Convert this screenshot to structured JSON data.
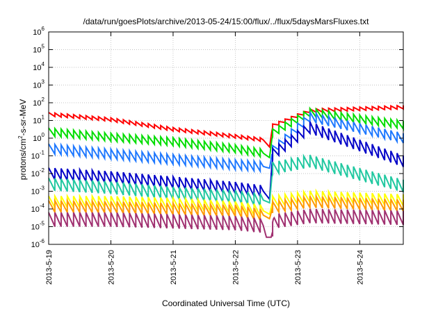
{
  "chart_data": {
    "type": "line",
    "title": "/data/run/goesPlots/archive/2013-05-24/15:00/flux/../flux/5daysMarsFluxes.txt",
    "xlabel": "Coordinated Universal Time (UTC)",
    "ylabel_main": "protons/cm",
    "ylabel_sup": "2",
    "ylabel_rest": "-s-sr-MeV",
    "y_scale": "log",
    "ylim_exp": [
      -6,
      6
    ],
    "y_tick_base": "10",
    "y_tick_exponents": [
      "-6",
      "-5",
      "-4",
      "-3",
      "-2",
      "-1",
      "0",
      "1",
      "2",
      "3",
      "4",
      "5",
      "6"
    ],
    "xlim": [
      0,
      5.7
    ],
    "x_ticks": [
      {
        "x": 0,
        "label": "2013-5-19"
      },
      {
        "x": 1,
        "label": "2013-5-20"
      },
      {
        "x": 2,
        "label": "2013-5-21"
      },
      {
        "x": 3,
        "label": "2013-5-22"
      },
      {
        "x": 4,
        "label": "2013-5-23"
      },
      {
        "x": 5,
        "label": "2013-5-24"
      }
    ],
    "x_units": "days since 2013-5-19 00:00 UTC",
    "grid": true,
    "sawtooth_period_days": 0.1,
    "sawtooth_amplitude_decades": {
      "red": 0.2,
      "green": 0.45,
      "blue": 0.55,
      "navy": 0.65,
      "teal": 0.7,
      "yellow": 0.65,
      "orange": 0.65,
      "purple": 0.8
    },
    "series": [
      {
        "key": "red",
        "color": "#ff0000",
        "envelope": [
          [
            0,
            1.35
          ],
          [
            1,
            1.05
          ],
          [
            2,
            0.5
          ],
          [
            3,
            0.1
          ],
          [
            3.45,
            -0.1
          ],
          [
            3.55,
            -0.5
          ],
          [
            3.6,
            0.7
          ],
          [
            4.2,
            1.55
          ],
          [
            5.7,
            1.75
          ]
        ]
      },
      {
        "key": "green",
        "color": "#00dd00",
        "envelope": [
          [
            0,
            0.35
          ],
          [
            1,
            0.05
          ],
          [
            2,
            -0.2
          ],
          [
            3,
            -0.6
          ],
          [
            3.45,
            -0.85
          ],
          [
            3.55,
            -1.1
          ],
          [
            3.6,
            0.3
          ],
          [
            4.2,
            1.45
          ],
          [
            5.7,
            0.75
          ]
        ]
      },
      {
        "key": "blue",
        "color": "#1e78ff",
        "envelope": [
          [
            0,
            -0.6
          ],
          [
            1,
            -0.9
          ],
          [
            2,
            -1.2
          ],
          [
            3,
            -1.5
          ],
          [
            3.45,
            -1.6
          ],
          [
            3.55,
            -1.7
          ],
          [
            3.6,
            -0.7
          ],
          [
            4.2,
            1.2
          ],
          [
            5.7,
            0.0
          ]
        ]
      },
      {
        "key": "navy",
        "color": "#0000c8",
        "envelope": [
          [
            0,
            -2.0
          ],
          [
            1,
            -2.2
          ],
          [
            2,
            -2.5
          ],
          [
            3,
            -2.8
          ],
          [
            3.45,
            -3.0
          ],
          [
            3.55,
            -3.45
          ],
          [
            3.6,
            -0.9
          ],
          [
            4.2,
            0.6
          ],
          [
            5.7,
            -1.3
          ]
        ]
      },
      {
        "key": "teal",
        "color": "#20c8a0",
        "envelope": [
          [
            0,
            -2.6
          ],
          [
            1,
            -2.8
          ],
          [
            2,
            -3.1
          ],
          [
            3,
            -3.3
          ],
          [
            3.45,
            -3.5
          ],
          [
            3.55,
            -3.65
          ],
          [
            3.6,
            -1.7
          ],
          [
            4.2,
            -1.3
          ],
          [
            5.7,
            -2.7
          ]
        ]
      },
      {
        "key": "yellow",
        "color": "#ffff00",
        "envelope": [
          [
            0,
            -3.6
          ],
          [
            1,
            -3.6
          ],
          [
            2,
            -3.7
          ],
          [
            3,
            -3.9
          ],
          [
            3.45,
            -4.1
          ],
          [
            3.55,
            -4.3
          ],
          [
            3.6,
            -3.6
          ],
          [
            4.2,
            -3.3
          ],
          [
            5.7,
            -3.5
          ]
        ]
      },
      {
        "key": "orange",
        "color": "#ff9900",
        "envelope": [
          [
            0,
            -3.85
          ],
          [
            1,
            -3.9
          ],
          [
            2,
            -4.0
          ],
          [
            3,
            -4.1
          ],
          [
            3.45,
            -4.35
          ],
          [
            3.55,
            -4.55
          ],
          [
            3.6,
            -3.9
          ],
          [
            4.2,
            -3.6
          ],
          [
            5.7,
            -3.8
          ]
        ]
      },
      {
        "key": "purple",
        "color": "#a03070",
        "envelope": [
          [
            0,
            -4.6
          ],
          [
            1,
            -4.6
          ],
          [
            2,
            -4.7
          ],
          [
            3,
            -4.8
          ],
          [
            3.45,
            -4.95
          ],
          [
            3.5,
            -5.6
          ],
          [
            3.58,
            -5.6
          ],
          [
            3.62,
            -4.7
          ],
          [
            4.2,
            -4.4
          ],
          [
            5.7,
            -4.5
          ]
        ]
      }
    ]
  }
}
